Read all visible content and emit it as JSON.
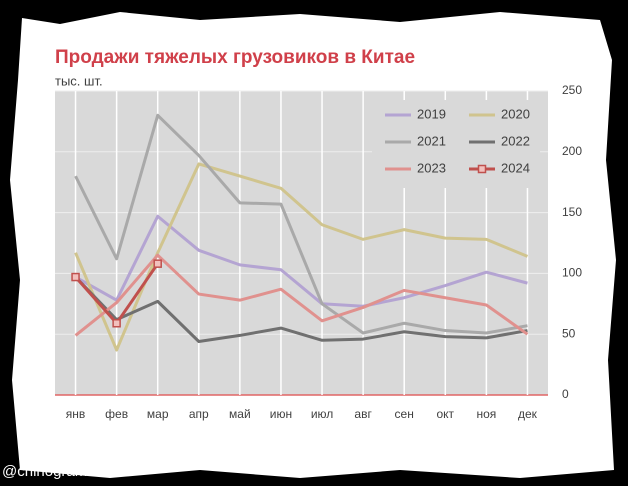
{
  "chart_data": {
    "type": "line",
    "title": "Продажи тяжелых грузовиков в Китае",
    "y_label": "тыс. шт.",
    "watermark": "@chinogram",
    "categories": [
      "янв",
      "фев",
      "мар",
      "апр",
      "май",
      "июн",
      "июл",
      "авг",
      "сен",
      "окт",
      "ноя",
      "дек"
    ],
    "series": [
      {
        "name": "2019",
        "color": "#b4a4d2",
        "values": [
          97,
          78,
          147,
          119,
          107,
          103,
          75,
          73,
          80,
          90,
          101,
          92
        ]
      },
      {
        "name": "2020",
        "color": "#d0c48e",
        "values": [
          117,
          37,
          117,
          190,
          180,
          170,
          140,
          128,
          136,
          129,
          128,
          114
        ]
      },
      {
        "name": "2021",
        "color": "#a9a9a9",
        "values": [
          180,
          112,
          230,
          197,
          158,
          157,
          75,
          51,
          59,
          53,
          51,
          57
        ]
      },
      {
        "name": "2022",
        "color": "#707070",
        "values": [
          97,
          62,
          77,
          44,
          49,
          55,
          45,
          46,
          52,
          48,
          47,
          53
        ]
      },
      {
        "name": "2023",
        "color": "#e0918e",
        "values": [
          49,
          76,
          115,
          83,
          78,
          87,
          61,
          72,
          86,
          80,
          74,
          50
        ]
      },
      {
        "name": "2024",
        "color": "#c0504d",
        "marker": "square",
        "values": [
          97,
          59,
          108,
          null,
          null,
          null,
          null,
          null,
          null,
          null,
          null,
          null
        ]
      }
    ],
    "ylim": [
      0,
      250
    ],
    "yticks": [
      0,
      50,
      100,
      150,
      200,
      250
    ],
    "y_axis_side": "right",
    "grid": true,
    "legend": "upper right"
  }
}
